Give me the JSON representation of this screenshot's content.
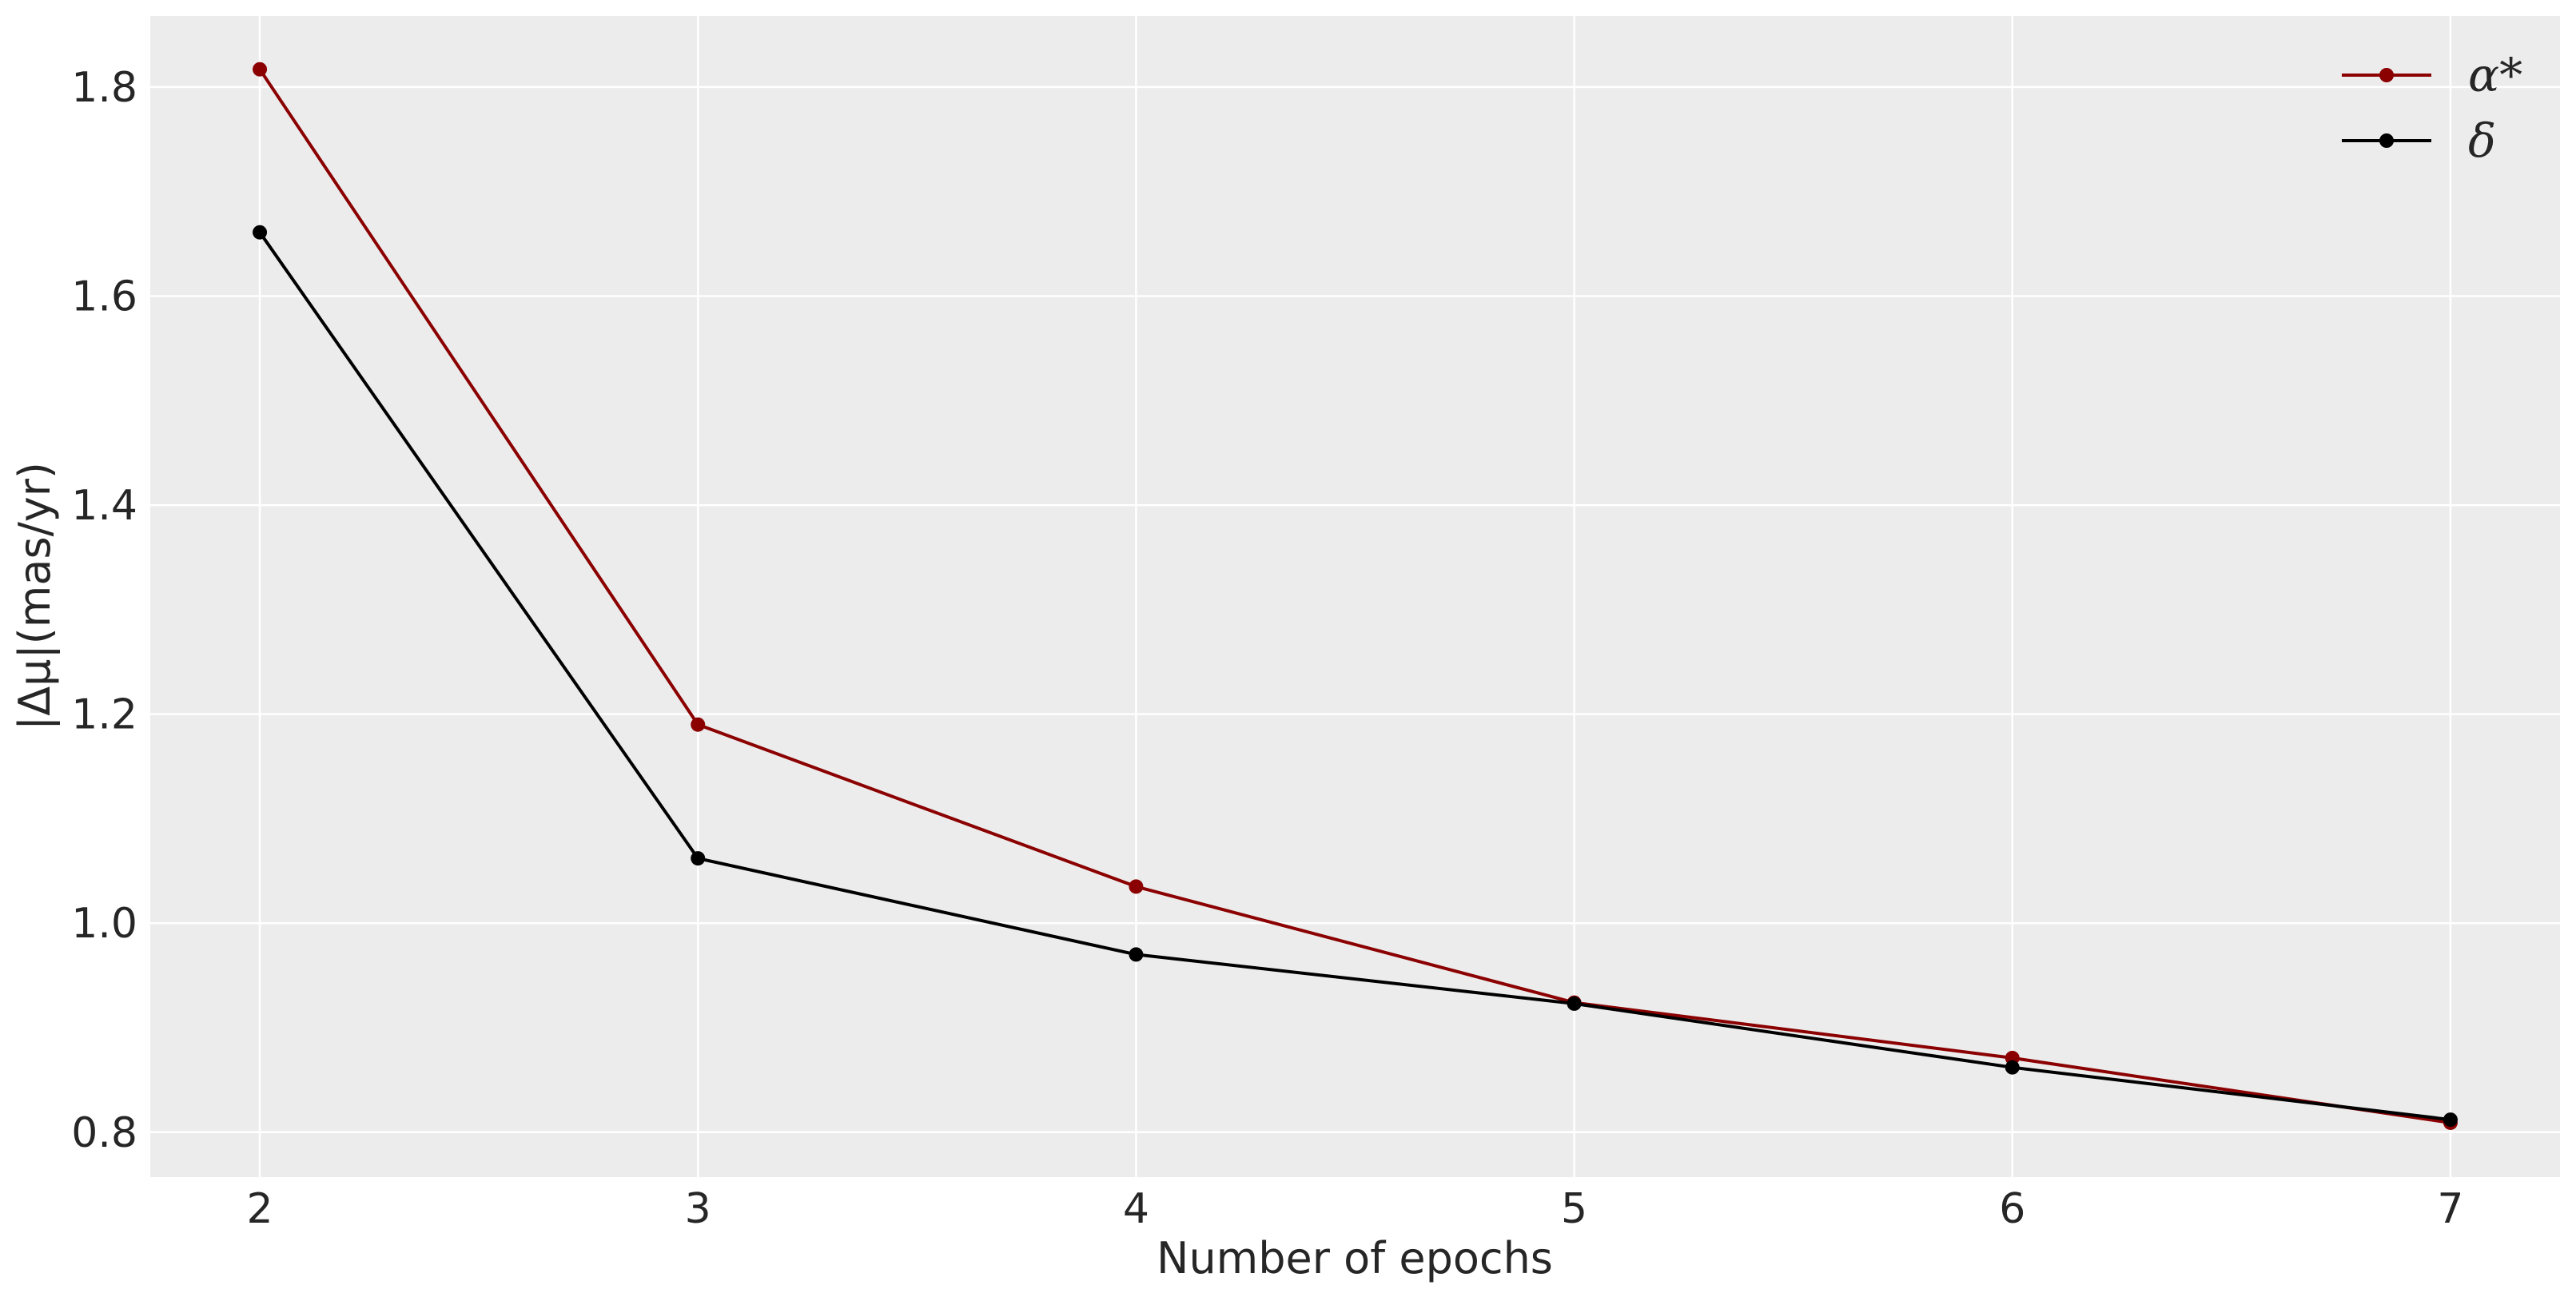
{
  "chart_data": {
    "type": "line",
    "title": "",
    "xlabel": "Number of epochs",
    "ylabel": "|Δμ|(mas/yr)",
    "x": [
      2,
      3,
      4,
      5,
      6,
      7
    ],
    "xlim": [
      1.75,
      7.25
    ],
    "ylim": [
      0.757,
      1.868
    ],
    "xticks": [
      2,
      3,
      4,
      5,
      6,
      7
    ],
    "xtick_labels": [
      "2",
      "3",
      "4",
      "5",
      "6",
      "7"
    ],
    "yticks": [
      0.8,
      1.0,
      1.2,
      1.4,
      1.6,
      1.8
    ],
    "ytick_labels": [
      "0.8",
      "1.0",
      "1.2",
      "1.4",
      "1.6",
      "1.8"
    ],
    "grid": true,
    "legend_position": "top-right",
    "background_color": "#ececec",
    "grid_color": "#ffffff",
    "series": [
      {
        "name": "α*",
        "color": "#8b0000",
        "marker": "circle",
        "values": [
          1.817,
          1.19,
          1.035,
          0.924,
          0.871,
          0.809
        ]
      },
      {
        "name": "δ",
        "color": "#000000",
        "marker": "circle",
        "values": [
          1.661,
          1.062,
          0.97,
          0.923,
          0.862,
          0.812
        ]
      }
    ]
  }
}
